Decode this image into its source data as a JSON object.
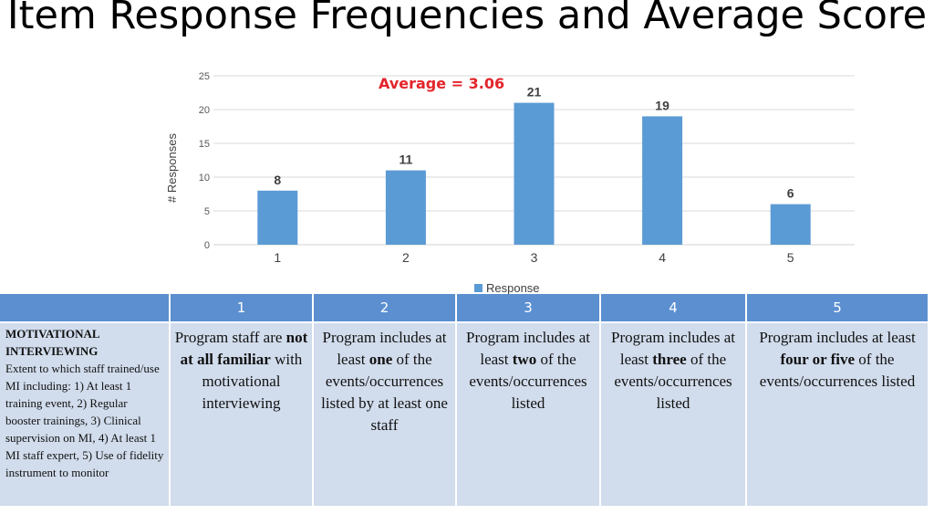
{
  "page": {
    "title": "Item Response Frequencies and Average Score"
  },
  "annotation": {
    "average": "Average = 3.06"
  },
  "colors": {
    "bar": "#5b9bd5",
    "annotation": "#e3242b",
    "header": "#5b8fd0",
    "cell": "#d1dcec"
  },
  "chart_data": {
    "type": "bar",
    "categories": [
      "1",
      "2",
      "3",
      "4",
      "5"
    ],
    "series": [
      {
        "name": "Response",
        "values": [
          8,
          11,
          21,
          19,
          6
        ]
      }
    ],
    "data_labels": [
      "8",
      "11",
      "21",
      "19",
      "6"
    ],
    "ylabel": "# Responses",
    "xlabel": "",
    "ylim": [
      0,
      25
    ],
    "yticks": [
      "0",
      "5",
      "10",
      "15",
      "20",
      "25"
    ],
    "grid": true,
    "legend": "bottom"
  },
  "table": {
    "headers": [
      "",
      "1",
      "2",
      "3",
      "4",
      "5"
    ],
    "item_title": "MOTIVATIONAL INTERVIEWING",
    "item_desc": "Extent to which staff trained/use MI including: 1) At least 1 training event, 2) Regular booster trainings, 3) Clinical supervision on MI, 4) At least 1 MI staff expert, 5) Use of fidelity instrument to monitor",
    "cells": [
      {
        "pre": "Program staff are ",
        "bold": "not at all familiar",
        "post": " with motivational interviewing"
      },
      {
        "pre": "Program includes at least ",
        "bold": "one",
        "post": " of the events/occurrences listed by at least one staff"
      },
      {
        "pre": "Program includes at least ",
        "bold": "two",
        "post": " of the events/occurrences listed"
      },
      {
        "pre": "Program includes at least ",
        "bold": "three",
        "post": " of the events/occurrences listed"
      },
      {
        "pre": "Program includes at least ",
        "bold": "four or five",
        "post": " of the events/occurrences listed"
      }
    ]
  }
}
